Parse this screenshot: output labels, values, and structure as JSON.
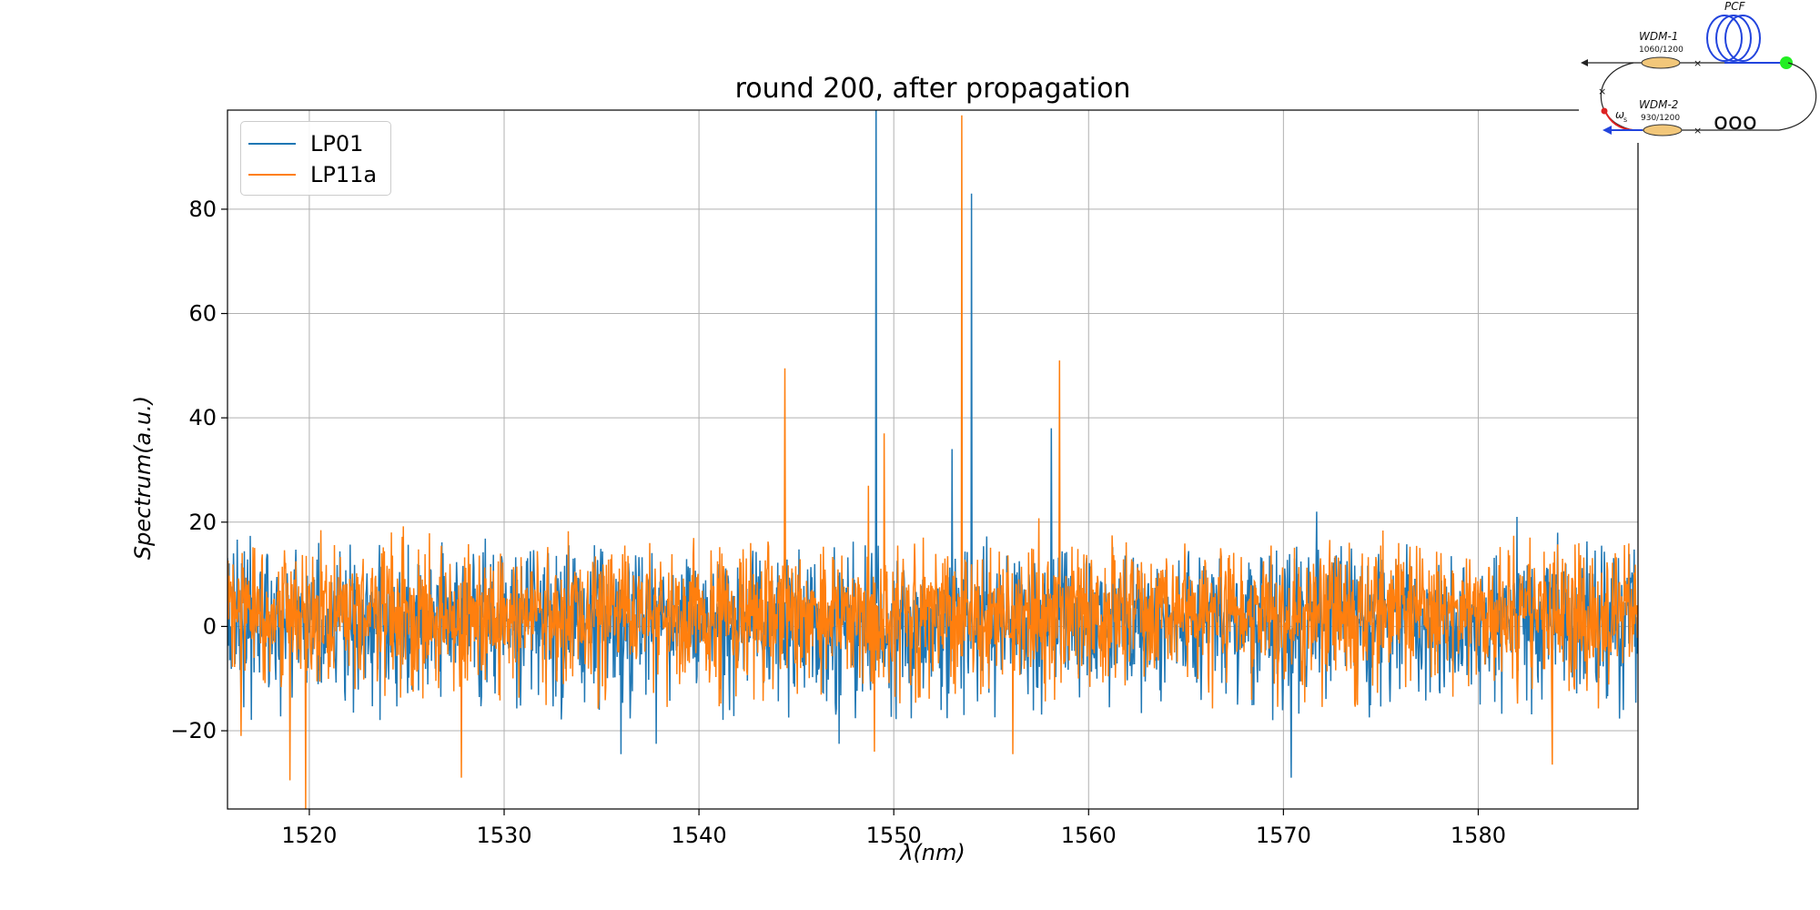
{
  "chart_data": {
    "type": "line",
    "title": "round 200, after propagation",
    "xlabel": "λ(nm)",
    "ylabel": "Spectrum(a.u.)",
    "xlim": [
      1515.8,
      1588.2
    ],
    "ylim": [
      -35,
      99
    ],
    "xticks": [
      1520,
      1530,
      1540,
      1550,
      1560,
      1570,
      1580
    ],
    "yticks": [
      -20,
      0,
      20,
      40,
      60,
      80
    ],
    "xtick_labels": [
      "1520",
      "1530",
      "1540",
      "1550",
      "1560",
      "1570",
      "1580"
    ],
    "ytick_labels": [
      "−20",
      "0",
      "20",
      "40",
      "60",
      "80"
    ],
    "grid": true,
    "legend_position": "upper-left",
    "series": [
      {
        "name": "LP01",
        "color": "#1f77b4",
        "noise_band": [
          -10,
          12
        ],
        "spikes": [
          [
            1549.1,
            110
          ],
          [
            1549.2,
            15.5
          ],
          [
            1553.0,
            34
          ],
          [
            1553.6,
            -17
          ],
          [
            1554.0,
            83
          ],
          [
            1558.1,
            38
          ],
          [
            1571.7,
            22
          ],
          [
            1570.4,
            -29
          ],
          [
            1582.0,
            21
          ],
          [
            1536.0,
            -24.5
          ],
          [
            1537.8,
            -22.5
          ],
          [
            1547.2,
            -22.5
          ]
        ]
      },
      {
        "name": "LP11a",
        "color": "#ff7f0e",
        "noise_band": [
          -8,
          13
        ],
        "spikes": [
          [
            1544.4,
            49.5
          ],
          [
            1548.7,
            27
          ],
          [
            1549.5,
            37
          ],
          [
            1553.5,
            98
          ],
          [
            1558.5,
            51
          ],
          [
            1519.0,
            -29.5
          ],
          [
            1519.8,
            -35
          ],
          [
            1527.8,
            -29
          ],
          [
            1549.0,
            -24
          ],
          [
            1556.1,
            -24.5
          ],
          [
            1583.8,
            -26.5
          ],
          [
            1516.5,
            -21
          ]
        ]
      }
    ]
  },
  "inset": {
    "pcf_label": "PCF",
    "wdm1_label": "WDM-1",
    "wdm1_spec": "1060/1200",
    "wdm2_label": "WDM-2",
    "wdm2_spec": "930/1200",
    "omega_label": "ω",
    "omega_sub": "s",
    "cut_text": "ooo"
  }
}
